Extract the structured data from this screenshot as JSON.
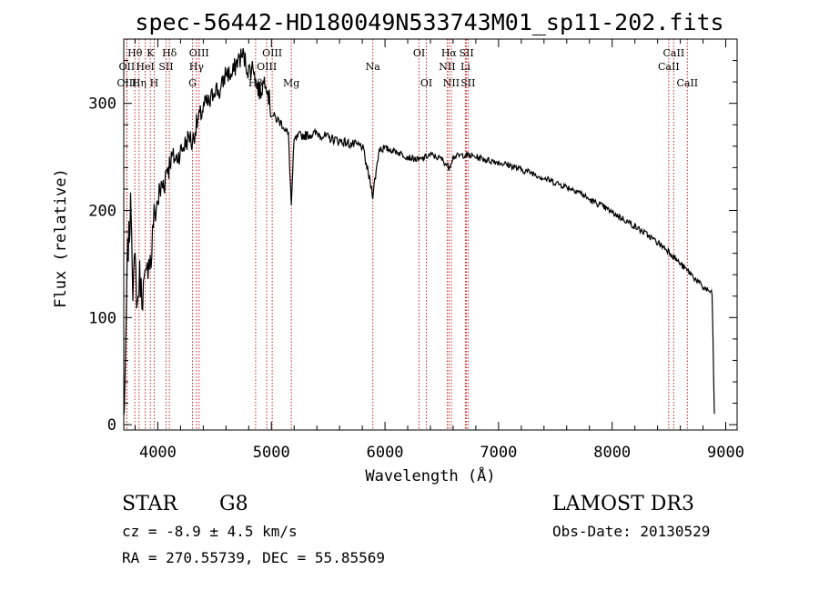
{
  "chart_data": {
    "type": "line",
    "title": "spec-56442-HD180049N533743M01_sp11-202.fits",
    "xlabel": "Wavelength (Å)",
    "ylabel": "Flux (relative)",
    "xlim": [
      3700,
      9100
    ],
    "ylim": [
      -5,
      360
    ],
    "xticks": [
      4000,
      5000,
      6000,
      7000,
      8000,
      9000
    ],
    "yticks": [
      0,
      100,
      200,
      300
    ],
    "series": [
      {
        "name": "flux",
        "x": [
          3700,
          3715,
          3725,
          3735,
          3750,
          3765,
          3780,
          3800,
          3820,
          3840,
          3860,
          3880,
          3900,
          3920,
          3940,
          3960,
          3980,
          4000,
          4030,
          4060,
          4080,
          4102,
          4130,
          4160,
          4200,
          4240,
          4280,
          4300,
          4340,
          4380,
          4420,
          4460,
          4500,
          4550,
          4600,
          4650,
          4700,
          4750,
          4800,
          4850,
          4861,
          4900,
          4950,
          5000,
          5050,
          5100,
          5150,
          5175,
          5200,
          5250,
          5300,
          5400,
          5500,
          5600,
          5700,
          5800,
          5893,
          5950,
          6000,
          6100,
          6200,
          6300,
          6400,
          6500,
          6563,
          6600,
          6700,
          6800,
          6900,
          7000,
          7100,
          7200,
          7300,
          7400,
          7500,
          7600,
          7700,
          7800,
          7900,
          8000,
          8100,
          8200,
          8300,
          8400,
          8500,
          8600,
          8700,
          8800,
          8850,
          8880,
          8900
        ],
        "y": [
          5,
          50,
          120,
          160,
          180,
          210,
          130,
          150,
          110,
          140,
          120,
          130,
          135,
          160,
          150,
          190,
          200,
          210,
          220,
          230,
          240,
          245,
          250,
          248,
          255,
          262,
          270,
          262,
          280,
          290,
          300,
          300,
          315,
          310,
          330,
          325,
          340,
          345,
          330,
          335,
          320,
          310,
          325,
          290,
          285,
          280,
          270,
          205,
          265,
          270,
          270,
          272,
          268,
          265,
          262,
          260,
          215,
          258,
          258,
          255,
          250,
          247,
          252,
          248,
          240,
          250,
          252,
          250,
          247,
          245,
          242,
          238,
          235,
          230,
          226,
          222,
          218,
          210,
          205,
          198,
          192,
          185,
          178,
          170,
          162,
          150,
          140,
          128,
          125,
          122,
          10
        ]
      }
    ],
    "lines": [
      {
        "label": "Hθ",
        "x": 3798,
        "row": 1
      },
      {
        "label": "OII",
        "x": 3727,
        "row": 2
      },
      {
        "label": "OIII",
        "x": 3727,
        "row": 3
      },
      {
        "label": "K",
        "x": 3934,
        "row": 1
      },
      {
        "label": "HeI",
        "x": 3889,
        "row": 2
      },
      {
        "label": "Hη",
        "x": 3835,
        "row": 3
      },
      {
        "label": "Hδ",
        "x": 4102,
        "row": 1
      },
      {
        "label": "SII",
        "x": 4072,
        "row": 2
      },
      {
        "label": "H",
        "x": 3968,
        "row": 3
      },
      {
        "label": "OIII",
        "x": 4363,
        "row": 1
      },
      {
        "label": "Hγ",
        "x": 4340,
        "row": 2
      },
      {
        "label": "G",
        "x": 4305,
        "row": 3
      },
      {
        "label": "OIII",
        "x": 5007,
        "row": 1
      },
      {
        "label": "OIII",
        "x": 4959,
        "row": 2
      },
      {
        "label": "Hβ",
        "x": 4861,
        "row": 3
      },
      {
        "label": "Mg",
        "x": 5175,
        "row": 3
      },
      {
        "label": "Na",
        "x": 5893,
        "row": 2
      },
      {
        "label": "OI",
        "x": 6300,
        "row": 1
      },
      {
        "label": "OI",
        "x": 6364,
        "row": 3
      },
      {
        "label": "Hα",
        "x": 6563,
        "row": 1
      },
      {
        "label": "NII",
        "x": 6548,
        "row": 2
      },
      {
        "label": "NII",
        "x": 6584,
        "row": 3
      },
      {
        "label": "SII",
        "x": 6717,
        "row": 1
      },
      {
        "label": "Li",
        "x": 6708,
        "row": 2
      },
      {
        "label": "SII",
        "x": 6731,
        "row": 3
      },
      {
        "label": "CaII",
        "x": 8542,
        "row": 1
      },
      {
        "label": "CaII",
        "x": 8498,
        "row": 2
      },
      {
        "label": "CaII",
        "x": 8662,
        "row": 3
      }
    ]
  },
  "info": {
    "class_label": "STAR",
    "subclass": "G8",
    "survey": "LAMOST DR3",
    "redshift": "cz = -8.9 ± 4.5 km/s",
    "obs_date": "Obs-Date: 20130529",
    "coords": "RA = 270.55739, DEC =  55.85569"
  },
  "colors": {
    "axis": "#000000",
    "spectrum": "#000000",
    "line_marker": "#cc2222"
  }
}
